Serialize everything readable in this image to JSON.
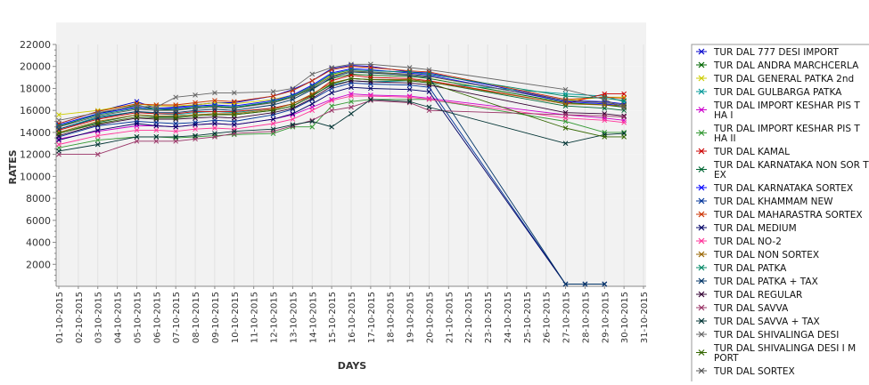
{
  "chart_data": {
    "type": "line",
    "title": "",
    "xlabel": "DAYS",
    "ylabel": "RATES",
    "ylim": [
      0,
      22000
    ],
    "yticks": [
      2000,
      4000,
      6000,
      8000,
      10000,
      12000,
      14000,
      16000,
      18000,
      20000,
      22000
    ],
    "grid": "vertical lines and alternating horizontal bands",
    "legend_position": "right",
    "categories": [
      "01-10-2015",
      "02-10-2015",
      "03-10-2015",
      "04-10-2015",
      "05-10-2015",
      "06-10-2015",
      "07-10-2015",
      "08-10-2015",
      "09-10-2015",
      "10-10-2015",
      "11-10-2015",
      "12-10-2015",
      "13-10-2015",
      "14-10-2015",
      "15-10-2015",
      "16-10-2015",
      "17-10-2015",
      "18-10-2015",
      "19-10-2015",
      "20-10-2015",
      "21-10-2015",
      "22-10-2015",
      "23-10-2015",
      "24-10-2015",
      "25-10-2015",
      "26-10-2015",
      "27-10-2015",
      "28-10-2015",
      "29-10-2015",
      "30-10-2015",
      "31-10-2015"
    ],
    "series": [
      {
        "name": "TUR DAL  777 DESI IMPORT",
        "color": "#0000cc",
        "values": [
          14800,
          null,
          15900,
          null,
          16800,
          16200,
          16300,
          16500,
          16700,
          16700,
          null,
          17300,
          17900,
          18700,
          19800,
          20100,
          20000,
          null,
          19500,
          19400,
          null,
          null,
          null,
          null,
          null,
          null,
          16900,
          null,
          16800,
          16600,
          null
        ]
      },
      {
        "name": "TUR DAL ANDRA MARCHCERLA",
        "color": "#006600",
        "values": [
          14500,
          null,
          15700,
          null,
          16500,
          16100,
          16000,
          16300,
          16400,
          16200,
          null,
          16800,
          17200,
          18000,
          18900,
          19300,
          19200,
          null,
          19100,
          18900,
          null,
          null,
          null,
          null,
          null,
          null,
          16700,
          null,
          16500,
          16300,
          null
        ]
      },
      {
        "name": "TUR DAL GENERAL PATKA 2nd",
        "color": "#cccc00",
        "values": [
          15600,
          null,
          16000,
          null,
          16600,
          16400,
          16400,
          16500,
          16700,
          16600,
          null,
          17000,
          17400,
          18200,
          19200,
          19600,
          19400,
          null,
          19300,
          19100,
          null,
          null,
          null,
          null,
          null,
          null,
          16900,
          null,
          17200,
          17200,
          null
        ]
      },
      {
        "name": "TUR DAL GULBARGA PATKA",
        "color": "#009999",
        "values": [
          14300,
          null,
          15400,
          null,
          15900,
          15700,
          15600,
          15800,
          15900,
          15800,
          null,
          16200,
          16600,
          17400,
          18300,
          18700,
          18600,
          null,
          18700,
          18500,
          null,
          null,
          null,
          null,
          null,
          null,
          17500,
          null,
          17300,
          16800,
          null
        ]
      },
      {
        "name": "TUR DAL IMPORT KESHAR PIS THA I",
        "color": "#cc00cc",
        "values": [
          13400,
          null,
          14100,
          null,
          14600,
          14600,
          14500,
          14700,
          14800,
          14700,
          null,
          15200,
          15600,
          16300,
          17000,
          17500,
          17400,
          null,
          17300,
          17100,
          null,
          null,
          null,
          null,
          null,
          null,
          15600,
          null,
          15300,
          15100,
          null
        ]
      },
      {
        "name": "TUR DAL IMPORT KESHAR PIS THA II",
        "color": "#339933",
        "values": [
          12600,
          null,
          13300,
          null,
          13600,
          13600,
          13500,
          13600,
          13700,
          13800,
          null,
          13900,
          14500,
          14500,
          16400,
          16800,
          17000,
          null,
          17000,
          17000,
          null,
          null,
          null,
          null,
          null,
          null,
          15000,
          null,
          14000,
          14000,
          null
        ]
      },
      {
        "name": "TUR DAL KAMAL",
        "color": "#cc0000",
        "values": [
          14200,
          null,
          15200,
          null,
          15800,
          15700,
          15700,
          15900,
          15900,
          15900,
          null,
          16200,
          16600,
          17400,
          18700,
          19200,
          19000,
          null,
          18900,
          18700,
          null,
          null,
          null,
          null,
          null,
          null,
          16600,
          null,
          17500,
          17500,
          null
        ]
      },
      {
        "name": "TUR DAL KARNATAKA NON SOR TEX",
        "color": "#006633",
        "values": [
          13900,
          null,
          14900,
          null,
          15600,
          15400,
          15400,
          15600,
          15700,
          15600,
          null,
          16000,
          16400,
          17300,
          18400,
          18900,
          18800,
          null,
          18800,
          18600,
          null,
          null,
          null,
          null,
          null,
          null,
          16400,
          null,
          16200,
          16000,
          null
        ]
      },
      {
        "name": "TUR DAL KARNATAKA SORTEX",
        "color": "#0000ff",
        "values": [
          14700,
          null,
          15700,
          null,
          16300,
          16100,
          16200,
          16400,
          16500,
          16400,
          null,
          16900,
          17400,
          18300,
          19400,
          19800,
          19700,
          null,
          19400,
          19200,
          null,
          null,
          null,
          null,
          null,
          null,
          16800,
          null,
          16600,
          16400,
          null
        ]
      },
      {
        "name": "TUR DAL KHAMMAM NEW",
        "color": "#003399",
        "values": [
          13600,
          null,
          14600,
          null,
          15000,
          14900,
          14800,
          14900,
          15100,
          15000,
          null,
          15600,
          16100,
          17000,
          18000,
          18500,
          18400,
          null,
          18300,
          18100,
          null,
          null,
          null,
          null,
          null,
          null,
          200,
          200,
          200,
          null,
          null
        ]
      },
      {
        "name": "TUR DAL MAHARASTRA SORTEX",
        "color": "#cc3300",
        "values": [
          14800,
          null,
          15900,
          null,
          16600,
          16500,
          16500,
          16700,
          16900,
          16800,
          null,
          17300,
          17800,
          18700,
          19700,
          20000,
          19900,
          null,
          19600,
          19500,
          null,
          null,
          null,
          null,
          null,
          null,
          17000,
          null,
          17200,
          17100,
          null
        ]
      },
      {
        "name": "TUR DAL MEDIUM",
        "color": "#000066",
        "values": [
          13300,
          null,
          14200,
          null,
          14800,
          14600,
          14500,
          14700,
          14800,
          14700,
          null,
          15200,
          15700,
          16600,
          17600,
          18100,
          18000,
          null,
          17900,
          17700,
          null,
          null,
          null,
          null,
          null,
          null,
          200,
          200,
          200,
          null,
          null
        ]
      },
      {
        "name": "TUR DAL NO-2",
        "color": "#ff3399",
        "values": [
          12900,
          null,
          13700,
          null,
          14200,
          14200,
          14100,
          14300,
          14400,
          14300,
          null,
          14800,
          15200,
          16000,
          16900,
          17300,
          17300,
          null,
          17200,
          17000,
          null,
          null,
          null,
          null,
          null,
          null,
          15300,
          null,
          15100,
          14900,
          null
        ]
      },
      {
        "name": "TUR DAL NON SORTEX",
        "color": "#996600",
        "values": [
          14000,
          null,
          15000,
          null,
          15600,
          15500,
          15500,
          15600,
          15700,
          15700,
          null,
          16100,
          16600,
          17500,
          18500,
          18900,
          18800,
          null,
          18800,
          18600,
          null,
          null,
          null,
          null,
          null,
          null,
          16600,
          null,
          16500,
          16400,
          null
        ]
      },
      {
        "name": "TUR DAL PATKA",
        "color": "#008866",
        "values": [
          14600,
          null,
          15600,
          null,
          16200,
          16100,
          16100,
          16300,
          16400,
          16300,
          null,
          16800,
          17300,
          18200,
          19300,
          19700,
          19600,
          null,
          19500,
          19300,
          null,
          null,
          null,
          null,
          null,
          null,
          17300,
          null,
          17100,
          16900,
          null
        ]
      },
      {
        "name": "TUR DAL PATKA + TAX",
        "color": "#003366",
        "values": [
          14300,
          null,
          15300,
          null,
          15900,
          15800,
          15800,
          16000,
          16100,
          16000,
          null,
          16500,
          17000,
          17900,
          19000,
          19500,
          19400,
          null,
          19200,
          19000,
          null,
          null,
          null,
          null,
          null,
          null,
          200,
          200,
          200,
          null,
          null
        ]
      },
      {
        "name": "TUR DAL REGULAR",
        "color": "#330033",
        "values": [
          13700,
          null,
          14700,
          null,
          15300,
          15200,
          15200,
          15300,
          15400,
          15300,
          null,
          15800,
          16200,
          17100,
          18200,
          18700,
          18600,
          null,
          18500,
          18300,
          null,
          null,
          null,
          null,
          null,
          null,
          15800,
          null,
          15700,
          15500,
          null
        ]
      },
      {
        "name": "TUR DAL SAVVA",
        "color": "#993366",
        "values": [
          12000,
          null,
          12000,
          null,
          13200,
          13200,
          13200,
          13400,
          13600,
          13900,
          null,
          14100,
          14600,
          15100,
          16000,
          16300,
          16900,
          null,
          16700,
          16000,
          null,
          null,
          null,
          null,
          null,
          null,
          15600,
          null,
          15500,
          15400,
          null
        ]
      },
      {
        "name": "TUR DAL SAVVA + TAX",
        "color": "#003333",
        "values": [
          12300,
          null,
          12900,
          null,
          13600,
          13600,
          13600,
          13700,
          13900,
          14100,
          null,
          14300,
          14700,
          15000,
          14500,
          15700,
          17000,
          null,
          16800,
          16300,
          null,
          null,
          null,
          null,
          null,
          null,
          13000,
          null,
          13800,
          13900,
          null
        ]
      },
      {
        "name": "TUR DAL SHIVALINGA DESI",
        "color": "#666666",
        "values": [
          15100,
          null,
          15800,
          null,
          16400,
          16300,
          17200,
          17400,
          17600,
          17600,
          null,
          17700,
          18000,
          19300,
          19900,
          20200,
          20200,
          null,
          19900,
          19700,
          null,
          null,
          null,
          null,
          null,
          null,
          17900,
          null,
          17000,
          16200,
          null
        ]
      },
      {
        "name": "TUR DAL SHIVALINGA DESI I MPORT",
        "color": "#336600",
        "values": [
          13900,
          null,
          14800,
          null,
          15400,
          15300,
          15300,
          15500,
          15600,
          15600,
          null,
          16000,
          16400,
          17300,
          18400,
          18900,
          18800,
          null,
          18700,
          18500,
          null,
          null,
          null,
          null,
          null,
          null,
          14400,
          null,
          13600,
          13600,
          null
        ]
      },
      {
        "name": "TUR DAL SORTEX",
        "color": "#555555",
        "values": [
          14500,
          null,
          15500,
          null,
          16100,
          16000,
          16000,
          16200,
          16300,
          16200,
          null,
          16700,
          17200,
          18100,
          19100,
          19600,
          19500,
          null,
          19300,
          19100,
          null,
          null,
          null,
          null,
          null,
          null,
          16900,
          null,
          16700,
          16500,
          null
        ]
      }
    ]
  }
}
